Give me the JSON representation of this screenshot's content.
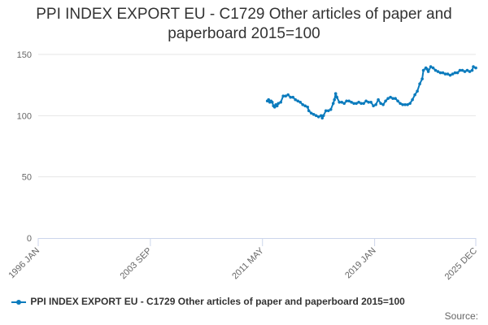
{
  "chart_data": {
    "type": "line",
    "title_lines": [
      "PPI INDEX EXPORT EU - C1729 Other articles of paper and",
      "paperboard 2015=100"
    ],
    "xlabel": "",
    "ylabel": "",
    "x_range": [
      "1996-01",
      "2025-12"
    ],
    "x_ticks": [
      "1996 JAN",
      "2003 SEP",
      "2011 MAY",
      "2019 JAN",
      "2025 DEC"
    ],
    "ylim": [
      0,
      150
    ],
    "y_ticks": [
      "0",
      "50",
      "100",
      "150"
    ],
    "grid": "horizontal",
    "legend_position": "bottom-left",
    "series": [
      {
        "name": "PPI INDEX EXPORT EU - C1729 Other articles of paper and paperboard 2015=100",
        "color": "#0b7bbd",
        "points": [
          [
            "2011-09",
            112
          ],
          [
            "2011-10",
            113
          ],
          [
            "2011-11",
            111
          ],
          [
            "2011-12",
            112
          ],
          [
            "2012-01",
            111
          ],
          [
            "2012-02",
            108
          ],
          [
            "2012-03",
            107
          ],
          [
            "2012-04",
            109
          ],
          [
            "2012-05",
            108
          ],
          [
            "2012-06",
            110
          ],
          [
            "2012-08",
            111
          ],
          [
            "2012-10",
            116
          ],
          [
            "2012-12",
            116
          ],
          [
            "2013-02",
            117
          ],
          [
            "2013-04",
            115
          ],
          [
            "2013-06",
            115
          ],
          [
            "2013-08",
            113
          ],
          [
            "2013-10",
            112
          ],
          [
            "2013-12",
            111
          ],
          [
            "2014-02",
            109
          ],
          [
            "2014-04",
            108
          ],
          [
            "2014-06",
            107
          ],
          [
            "2014-07",
            104
          ],
          [
            "2014-09",
            102
          ],
          [
            "2014-11",
            101
          ],
          [
            "2015-01",
            100
          ],
          [
            "2015-03",
            99
          ],
          [
            "2015-05",
            100
          ],
          [
            "2015-06",
            98
          ],
          [
            "2015-07",
            100
          ],
          [
            "2015-09",
            104
          ],
          [
            "2015-11",
            104
          ],
          [
            "2016-01",
            105
          ],
          [
            "2016-03",
            110
          ],
          [
            "2016-04",
            113
          ],
          [
            "2016-05",
            118
          ],
          [
            "2016-06",
            115
          ],
          [
            "2016-08",
            111
          ],
          [
            "2016-10",
            111
          ],
          [
            "2016-12",
            110
          ],
          [
            "2017-02",
            112
          ],
          [
            "2017-04",
            112
          ],
          [
            "2017-06",
            111
          ],
          [
            "2017-08",
            110
          ],
          [
            "2017-10",
            110
          ],
          [
            "2017-12",
            111
          ],
          [
            "2018-02",
            110
          ],
          [
            "2018-04",
            110
          ],
          [
            "2018-06",
            112
          ],
          [
            "2018-08",
            111
          ],
          [
            "2018-10",
            111
          ],
          [
            "2018-12",
            108
          ],
          [
            "2019-02",
            109
          ],
          [
            "2019-04",
            113
          ],
          [
            "2019-06",
            110
          ],
          [
            "2019-08",
            109
          ],
          [
            "2019-10",
            112
          ],
          [
            "2019-12",
            114
          ],
          [
            "2020-02",
            115
          ],
          [
            "2020-04",
            114
          ],
          [
            "2020-06",
            114
          ],
          [
            "2020-08",
            112
          ],
          [
            "2020-10",
            110
          ],
          [
            "2020-12",
            109
          ],
          [
            "2021-02",
            109
          ],
          [
            "2021-04",
            109
          ],
          [
            "2021-06",
            110
          ],
          [
            "2021-08",
            113
          ],
          [
            "2021-10",
            117
          ],
          [
            "2021-12",
            120
          ],
          [
            "2022-02",
            126
          ],
          [
            "2022-04",
            130
          ],
          [
            "2022-05",
            137
          ],
          [
            "2022-07",
            139
          ],
          [
            "2022-08",
            138
          ],
          [
            "2022-09",
            136
          ],
          [
            "2022-11",
            140
          ],
          [
            "2023-01",
            139
          ],
          [
            "2023-03",
            137
          ],
          [
            "2023-05",
            136
          ],
          [
            "2023-07",
            135
          ],
          [
            "2023-09",
            135
          ],
          [
            "2023-11",
            134
          ],
          [
            "2024-01",
            134
          ],
          [
            "2024-03",
            133
          ],
          [
            "2024-05",
            134
          ],
          [
            "2024-07",
            135
          ],
          [
            "2024-09",
            135
          ],
          [
            "2024-11",
            137
          ],
          [
            "2025-01",
            137
          ],
          [
            "2025-03",
            136
          ],
          [
            "2025-05",
            137
          ],
          [
            "2025-07",
            136
          ],
          [
            "2025-09",
            137
          ],
          [
            "2025-10",
            140
          ],
          [
            "2025-12",
            139
          ]
        ]
      }
    ]
  },
  "legend": {
    "label": "PPI INDEX EXPORT EU - C1729 Other articles of paper and paperboard 2015=100"
  },
  "source_label": "Source:"
}
